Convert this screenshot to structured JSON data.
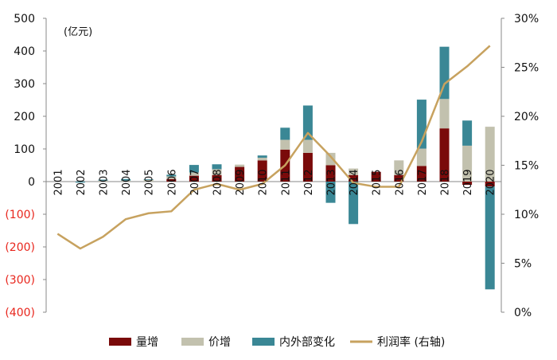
{
  "chart_data": {
    "type": "bar",
    "stacked": true,
    "unit_label": "(亿元)",
    "categories": [
      "2001",
      "2002",
      "2003",
      "2004",
      "2005",
      "2006",
      "2007",
      "2008",
      "2009",
      "2010",
      "2011",
      "2012",
      "2013",
      "2014",
      "2015",
      "2016",
      "2017",
      "2018",
      "2019",
      "2020"
    ],
    "series": [
      {
        "name": "量增",
        "color": "#7a0a0a",
        "values": [
          0,
          0,
          0,
          0,
          0,
          8,
          18,
          20,
          45,
          65,
          98,
          88,
          50,
          20,
          30,
          20,
          48,
          163,
          -10,
          -15
        ]
      },
      {
        "name": "价增",
        "color": "#c2c1ae",
        "values": [
          0,
          0,
          3,
          3,
          5,
          8,
          10,
          18,
          7,
          8,
          30,
          40,
          38,
          20,
          0,
          45,
          53,
          90,
          110,
          168
        ]
      },
      {
        "name": "内外部变化",
        "color": "#3a8795",
        "values": [
          0,
          -3,
          3,
          5,
          2,
          5,
          23,
          15,
          0,
          7,
          37,
          105,
          -65,
          -130,
          0,
          0,
          150,
          160,
          77,
          -315
        ]
      }
    ],
    "line_series": {
      "name": "利润率 (右轴)",
      "color": "#c7a25f",
      "axis": "right",
      "values": [
        8.0,
        6.5,
        7.7,
        9.5,
        10.1,
        10.3,
        12.5,
        13.1,
        12.5,
        13.1,
        15.0,
        18.3,
        15.9,
        13.2,
        12.8,
        12.8,
        17.4,
        23.3,
        25.1,
        27.2
      ]
    },
    "y_left": {
      "min": -400,
      "max": 500,
      "ticks": [
        500,
        400,
        300,
        200,
        100,
        0,
        -100,
        -200,
        -300,
        -400
      ],
      "tick_labels": [
        "500",
        "400",
        "300",
        "200",
        "100",
        "0",
        "(100)",
        "(200)",
        "(300)",
        "(400)"
      ],
      "negative_color": "#e8261d"
    },
    "y_right": {
      "min": 0,
      "max": 30,
      "ticks": [
        30,
        25,
        20,
        15,
        10,
        5,
        0
      ],
      "tick_labels": [
        "30%",
        "25%",
        "20%",
        "15%",
        "10%",
        "5%",
        "0%"
      ]
    },
    "legend_position": "bottom",
    "grid": false
  }
}
